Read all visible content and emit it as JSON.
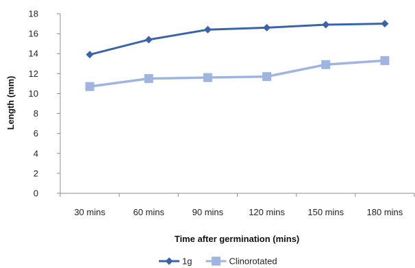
{
  "chart_data": {
    "type": "line",
    "categories": [
      "30 mins",
      "60 mins",
      "90 mins",
      "120 mins",
      "150 mins",
      "180 mins"
    ],
    "series": [
      {
        "name": "1g",
        "values": [
          13.9,
          15.4,
          16.4,
          16.6,
          16.9,
          17.0
        ],
        "color": "#3a64a8",
        "marker": "diamond"
      },
      {
        "name": "Clinorotated",
        "values": [
          10.7,
          11.5,
          11.6,
          11.7,
          12.9,
          13.3
        ],
        "color": "#9fb4e0",
        "marker": "square"
      }
    ],
    "xlabel": "Time after germination (mins)",
    "ylabel": "Length (mm)",
    "ylim": [
      0,
      18
    ],
    "yticks": [
      "0",
      "2",
      "4",
      "6",
      "8",
      "10",
      "12",
      "14",
      "16",
      "18"
    ],
    "grid": false,
    "legend_position": "bottom"
  }
}
